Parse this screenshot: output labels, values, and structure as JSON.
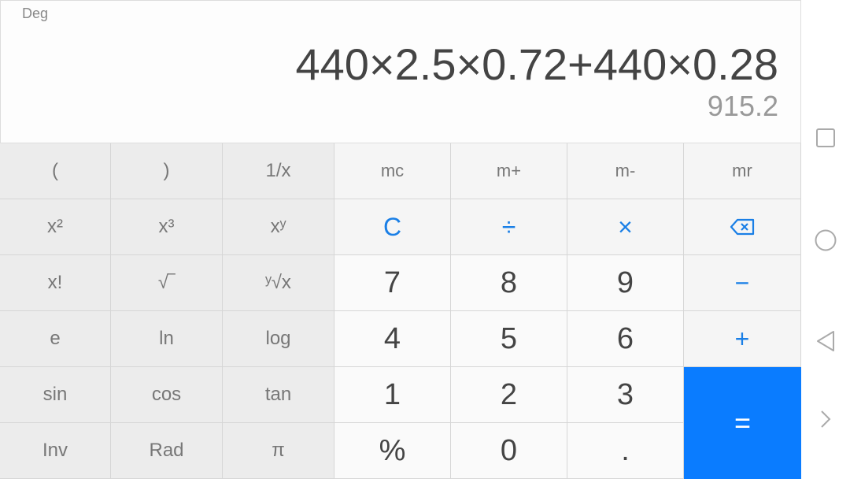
{
  "display": {
    "mode": "Deg",
    "expression": "440×2.5×0.72+440×0.28",
    "result": "915.2"
  },
  "keys": [
    {
      "label": "(",
      "type": "sci",
      "name": "open-paren-button"
    },
    {
      "label": ")",
      "type": "sci",
      "name": "close-paren-button"
    },
    {
      "label": "1/x",
      "type": "sci",
      "name": "reciprocal-button"
    },
    {
      "label": "mc",
      "type": "mem",
      "name": "memory-clear-button"
    },
    {
      "label": "m+",
      "type": "mem",
      "name": "memory-add-button"
    },
    {
      "label": "m-",
      "type": "mem",
      "name": "memory-subtract-button"
    },
    {
      "label": "mr",
      "type": "mem",
      "name": "memory-recall-button"
    },
    {
      "label": "x²",
      "type": "sci",
      "name": "square-button"
    },
    {
      "label": "x³",
      "type": "sci",
      "name": "cube-button"
    },
    {
      "label": "xʸ",
      "type": "sci",
      "name": "power-button"
    },
    {
      "label": "C",
      "type": "op",
      "name": "clear-button"
    },
    {
      "label": "÷",
      "type": "op",
      "name": "divide-button"
    },
    {
      "label": "×",
      "type": "op",
      "name": "multiply-button"
    },
    {
      "label": "",
      "type": "op",
      "name": "backspace-button",
      "icon": "backspace-icon"
    },
    {
      "label": "x!",
      "type": "sci",
      "name": "factorial-button"
    },
    {
      "label": "√‾",
      "type": "sci",
      "name": "sqrt-button"
    },
    {
      "label": "ʸ√x",
      "type": "sci",
      "name": "root-button"
    },
    {
      "label": "7",
      "type": "dig",
      "name": "digit-7-button"
    },
    {
      "label": "8",
      "type": "dig",
      "name": "digit-8-button"
    },
    {
      "label": "9",
      "type": "dig",
      "name": "digit-9-button"
    },
    {
      "label": "−",
      "type": "op",
      "name": "minus-button"
    },
    {
      "label": "e",
      "type": "sci",
      "name": "e-button"
    },
    {
      "label": "ln",
      "type": "sci",
      "name": "ln-button"
    },
    {
      "label": "log",
      "type": "sci",
      "name": "log-button"
    },
    {
      "label": "4",
      "type": "dig",
      "name": "digit-4-button"
    },
    {
      "label": "5",
      "type": "dig",
      "name": "digit-5-button"
    },
    {
      "label": "6",
      "type": "dig",
      "name": "digit-6-button"
    },
    {
      "label": "+",
      "type": "op",
      "name": "plus-button"
    },
    {
      "label": "sin",
      "type": "sci",
      "name": "sin-button"
    },
    {
      "label": "cos",
      "type": "sci",
      "name": "cos-button"
    },
    {
      "label": "tan",
      "type": "sci",
      "name": "tan-button"
    },
    {
      "label": "1",
      "type": "dig",
      "name": "digit-1-button"
    },
    {
      "label": "2",
      "type": "dig",
      "name": "digit-2-button"
    },
    {
      "label": "3",
      "type": "dig",
      "name": "digit-3-button"
    },
    {
      "label": "=",
      "type": "eq",
      "name": "equals-button"
    },
    {
      "label": "Inv",
      "type": "sci",
      "name": "inverse-button"
    },
    {
      "label": "Rad",
      "type": "sci",
      "name": "rad-button"
    },
    {
      "label": "π",
      "type": "sci",
      "name": "pi-button"
    },
    {
      "label": "%",
      "type": "dig",
      "name": "percent-button"
    },
    {
      "label": "0",
      "type": "dig",
      "name": "digit-0-button"
    },
    {
      "label": ".",
      "type": "dig",
      "name": "decimal-button"
    }
  ],
  "colors": {
    "accent": "#0a7cff",
    "operator": "#1a7fe6"
  },
  "nav": [
    "recents-icon",
    "home-icon",
    "back-icon",
    "expand-icon"
  ]
}
